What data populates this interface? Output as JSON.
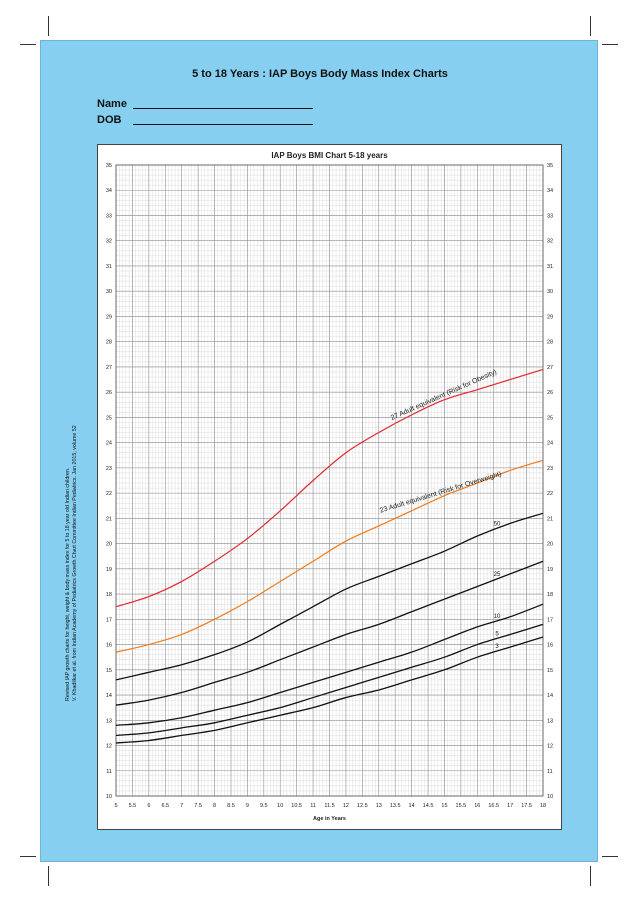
{
  "page": {
    "heading": "5 to 18 Years : IAP Boys Body Mass Index Charts",
    "name_label": "Name",
    "dob_label": "DOB",
    "side_note_line1": "Revised IAP growth charts for height, weight & body mass index for 5 to 18 year old Indian children.",
    "side_note_line2": "V. Khadilkar et al. from Indian Academy of Pediatrics Growth Chart Committee Indian Pediatrics. Jan 2015, volume 52"
  },
  "colors": {
    "panel": "#86cff0",
    "obesity_line": "#e0282e",
    "overweight_line": "#f07c1a",
    "percentile_line": "#111111",
    "grid": "#bbbbbb"
  },
  "chart_data": {
    "type": "line",
    "title": "IAP Boys  BMI Chart 5-18 years",
    "xlabel": "Age in Years",
    "ylabel": "",
    "xlim": [
      5,
      18
    ],
    "ylim": [
      10,
      35
    ],
    "grid": true,
    "x_ticks": [
      "5",
      "5.5",
      "6",
      "6.5",
      "7",
      "7.5",
      "8",
      "8.5",
      "9",
      "9.5",
      "10",
      "10.5",
      "11",
      "11.5",
      "12",
      "12.5",
      "13",
      "13.5",
      "14",
      "14.5",
      "15",
      "15.5",
      "16",
      "16.5",
      "17",
      "17.5",
      "18"
    ],
    "y_ticks": [
      "10",
      "11",
      "12",
      "13",
      "14",
      "15",
      "16",
      "17",
      "18",
      "19",
      "20",
      "21",
      "22",
      "23",
      "24",
      "25",
      "26",
      "27",
      "28",
      "29",
      "30",
      "31",
      "32",
      "33",
      "34",
      "35"
    ],
    "x": [
      5,
      6,
      7,
      8,
      9,
      10,
      11,
      12,
      13,
      14,
      15,
      16,
      17,
      18
    ],
    "series": [
      {
        "name": "27 Adult equivalent (Risk for Obesity)",
        "color": "#e0282e",
        "values": [
          17.5,
          17.9,
          18.5,
          19.3,
          20.2,
          21.3,
          22.5,
          23.6,
          24.4,
          25.1,
          25.7,
          26.1,
          26.5,
          26.9
        ]
      },
      {
        "name": "23 Adult equivalent (Risk for Overweight)",
        "color": "#f07c1a",
        "values": [
          15.7,
          16.0,
          16.4,
          17.0,
          17.7,
          18.5,
          19.3,
          20.1,
          20.7,
          21.3,
          21.9,
          22.4,
          22.9,
          23.3
        ]
      },
      {
        "name": "50",
        "color": "#111111",
        "values": [
          14.6,
          14.9,
          15.2,
          15.6,
          16.1,
          16.8,
          17.5,
          18.2,
          18.7,
          19.2,
          19.7,
          20.3,
          20.8,
          21.2
        ]
      },
      {
        "name": "25",
        "color": "#111111",
        "values": [
          13.6,
          13.8,
          14.1,
          14.5,
          14.9,
          15.4,
          15.9,
          16.4,
          16.8,
          17.3,
          17.8,
          18.3,
          18.8,
          19.3
        ]
      },
      {
        "name": "10",
        "color": "#111111",
        "values": [
          12.8,
          12.9,
          13.1,
          13.4,
          13.7,
          14.1,
          14.5,
          14.9,
          15.3,
          15.7,
          16.2,
          16.7,
          17.1,
          17.6
        ]
      },
      {
        "name": "5",
        "color": "#111111",
        "values": [
          12.4,
          12.5,
          12.7,
          12.9,
          13.2,
          13.5,
          13.9,
          14.3,
          14.7,
          15.1,
          15.5,
          16.0,
          16.4,
          16.8
        ]
      },
      {
        "name": "3",
        "color": "#111111",
        "values": [
          12.1,
          12.2,
          12.4,
          12.6,
          12.9,
          13.2,
          13.5,
          13.9,
          14.2,
          14.6,
          15.0,
          15.5,
          15.9,
          16.3
        ]
      }
    ],
    "line_labels": [
      {
        "series": 0,
        "text": "27 Adult equivalent (Risk for Obesity)",
        "at_x": 15.0,
        "rotate": -24
      },
      {
        "series": 1,
        "text": "23 Adult equivalent (Risk for Overweight)",
        "at_x": 14.9,
        "rotate": -17
      },
      {
        "series": 2,
        "text": "50",
        "at_x": 16.6
      },
      {
        "series": 3,
        "text": "25",
        "at_x": 16.6
      },
      {
        "series": 4,
        "text": "10",
        "at_x": 16.6
      },
      {
        "series": 5,
        "text": "5",
        "at_x": 16.6
      },
      {
        "series": 6,
        "text": "3",
        "at_x": 16.6
      }
    ]
  }
}
